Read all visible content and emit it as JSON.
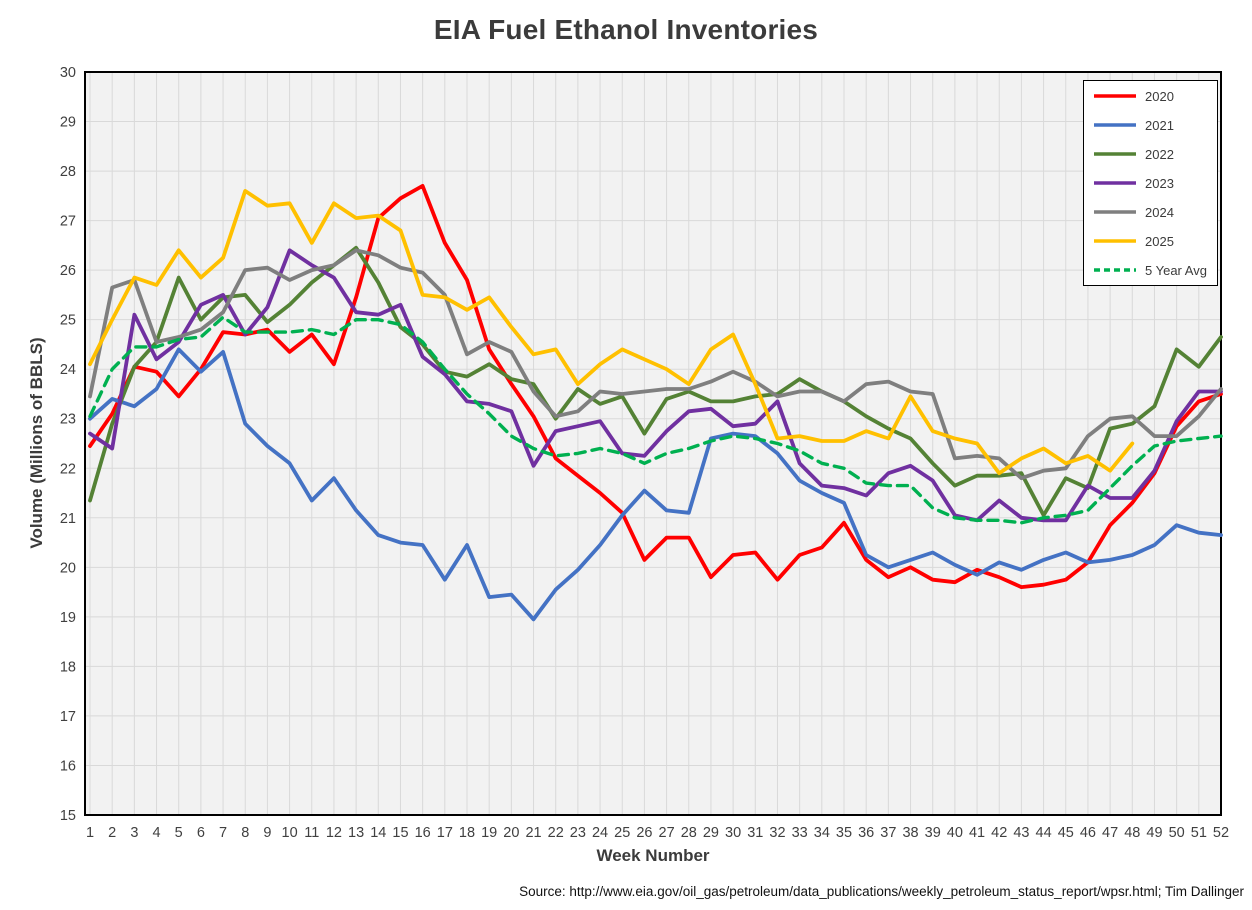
{
  "title": "EIA Fuel Ethanol Inventories",
  "x_axis": {
    "title": "Week Number",
    "ticks": [
      1,
      2,
      3,
      4,
      5,
      6,
      7,
      8,
      9,
      10,
      11,
      12,
      13,
      14,
      15,
      16,
      17,
      18,
      19,
      20,
      21,
      22,
      23,
      24,
      25,
      26,
      27,
      28,
      29,
      30,
      31,
      32,
      33,
      34,
      35,
      36,
      37,
      38,
      39,
      40,
      41,
      42,
      43,
      44,
      45,
      46,
      47,
      48,
      49,
      50,
      51,
      52
    ]
  },
  "y_axis": {
    "title": "Volume (Millions of BBLS)",
    "ticks": [
      15,
      16,
      17,
      18,
      19,
      20,
      21,
      22,
      23,
      24,
      25,
      26,
      27,
      28,
      29,
      30
    ]
  },
  "source": "Source: http://www.eia.gov/oil_gas/petroleum/data_publications/weekly_petroleum_status_report/wpsr.html; Tim Dallinger",
  "colors": {
    "plot_background": "#f2f2f2",
    "gridline": "#d9d9d9",
    "border": "#000000",
    "title_text": "#3b3b3b",
    "tick_text": "#404040"
  },
  "chart_data": {
    "type": "line",
    "title": "EIA Fuel Ethanol Inventories",
    "xlabel": "Week Number",
    "ylabel": "Volume (Millions of BBLS)",
    "xlim": [
      1,
      52
    ],
    "ylim": [
      15,
      30
    ],
    "grid": true,
    "legend_position": "top-right",
    "x": [
      1,
      2,
      3,
      4,
      5,
      6,
      7,
      8,
      9,
      10,
      11,
      12,
      13,
      14,
      15,
      16,
      17,
      18,
      19,
      20,
      21,
      22,
      23,
      24,
      25,
      26,
      27,
      28,
      29,
      30,
      31,
      32,
      33,
      34,
      35,
      36,
      37,
      38,
      39,
      40,
      41,
      42,
      43,
      44,
      45,
      46,
      47,
      48,
      49,
      50,
      51,
      52
    ],
    "series": [
      {
        "name": "2020",
        "color": "#FF0000",
        "style": "solid",
        "values": [
          22.45,
          23.1,
          24.05,
          23.95,
          23.45,
          24.0,
          24.75,
          24.7,
          24.8,
          24.35,
          24.7,
          24.1,
          25.45,
          27.05,
          27.45,
          27.7,
          26.55,
          25.8,
          24.4,
          23.7,
          23.05,
          22.2,
          21.85,
          21.5,
          21.1,
          20.15,
          20.6,
          20.6,
          19.8,
          20.25,
          20.3,
          19.75,
          20.25,
          20.4,
          20.9,
          20.15,
          19.8,
          20.0,
          19.75,
          19.7,
          19.95,
          19.8,
          19.6,
          19.65,
          19.75,
          20.1,
          20.85,
          21.3,
          21.9,
          22.85,
          23.35,
          23.5
        ]
      },
      {
        "name": "2021",
        "color": "#4472C4",
        "style": "solid",
        "values": [
          23.0,
          23.4,
          23.25,
          23.6,
          24.4,
          23.95,
          24.35,
          22.9,
          22.45,
          22.1,
          21.35,
          21.8,
          21.15,
          20.65,
          20.5,
          20.45,
          19.75,
          20.45,
          19.4,
          19.45,
          18.95,
          19.55,
          19.95,
          20.45,
          21.05,
          21.55,
          21.15,
          21.1,
          22.6,
          22.7,
          22.65,
          22.3,
          21.75,
          21.5,
          21.3,
          20.25,
          20.0,
          20.15,
          20.3,
          20.05,
          19.85,
          20.1,
          19.95,
          20.15,
          20.3,
          20.1,
          20.15,
          20.25,
          20.45,
          20.85,
          20.7,
          20.65
        ]
      },
      {
        "name": "2022",
        "color": "#548235",
        "style": "solid",
        "values": [
          21.35,
          22.9,
          24.05,
          24.55,
          25.85,
          25.0,
          25.45,
          25.5,
          24.95,
          25.3,
          25.75,
          26.1,
          26.45,
          25.75,
          24.85,
          24.5,
          23.95,
          23.85,
          24.1,
          23.8,
          23.7,
          23.0,
          23.6,
          23.3,
          23.45,
          22.7,
          23.4,
          23.55,
          23.35,
          23.35,
          23.45,
          23.5,
          23.8,
          23.55,
          23.35,
          23.05,
          22.8,
          22.6,
          22.1,
          21.65,
          21.85,
          21.85,
          21.9,
          21.05,
          21.8,
          21.6,
          22.8,
          22.9,
          23.25,
          24.4,
          24.05,
          24.65
        ]
      },
      {
        "name": "2023",
        "color": "#7030A0",
        "style": "solid",
        "values": [
          22.7,
          22.4,
          25.1,
          24.2,
          24.55,
          25.3,
          25.5,
          24.7,
          25.25,
          26.4,
          26.1,
          25.85,
          25.15,
          25.1,
          25.3,
          24.25,
          23.9,
          23.35,
          23.3,
          23.15,
          22.05,
          22.75,
          22.85,
          22.95,
          22.3,
          22.25,
          22.75,
          23.15,
          23.2,
          22.85,
          22.9,
          23.35,
          22.1,
          21.65,
          21.6,
          21.45,
          21.9,
          22.05,
          21.75,
          21.05,
          20.95,
          21.35,
          21.0,
          20.95,
          20.95,
          21.65,
          21.4,
          21.4,
          21.95,
          22.95,
          23.55,
          23.55
        ]
      },
      {
        "name": "2024",
        "color": "#7F7F7F",
        "style": "solid",
        "values": [
          23.45,
          25.65,
          25.8,
          24.55,
          24.65,
          24.8,
          25.15,
          26.0,
          26.05,
          25.8,
          26.0,
          26.1,
          26.4,
          26.3,
          26.05,
          25.95,
          25.5,
          24.3,
          24.55,
          24.35,
          23.55,
          23.05,
          23.15,
          23.55,
          23.5,
          23.55,
          23.6,
          23.6,
          23.75,
          23.95,
          23.75,
          23.45,
          23.55,
          23.55,
          23.35,
          23.7,
          23.75,
          23.55,
          23.5,
          22.2,
          22.25,
          22.2,
          21.8,
          21.95,
          22.0,
          22.65,
          23.0,
          23.05,
          22.65,
          22.65,
          23.05,
          23.6
        ]
      },
      {
        "name": "2025",
        "color": "#FFC000",
        "style": "solid",
        "values": [
          24.1,
          25.0,
          25.85,
          25.7,
          26.4,
          25.85,
          26.25,
          27.6,
          27.3,
          27.35,
          26.55,
          27.35,
          27.05,
          27.1,
          26.8,
          25.5,
          25.45,
          25.2,
          25.45,
          24.85,
          24.3,
          24.4,
          23.7,
          24.1,
          24.4,
          24.2,
          24.0,
          23.7,
          24.4,
          24.7,
          23.7,
          22.6,
          22.65,
          22.55,
          22.55,
          22.75,
          22.6,
          23.45,
          22.75,
          22.6,
          22.5,
          21.9,
          22.2,
          22.4,
          22.1,
          22.25,
          21.95,
          22.5
        ]
      },
      {
        "name": "5 Year Avg",
        "color": "#00B050",
        "style": "dashed",
        "values": [
          23.05,
          24.0,
          24.45,
          24.45,
          24.6,
          24.65,
          25.05,
          24.75,
          24.75,
          24.75,
          24.8,
          24.7,
          25.0,
          25.0,
          24.9,
          24.55,
          24.0,
          23.5,
          23.1,
          22.65,
          22.4,
          22.25,
          22.3,
          22.4,
          22.3,
          22.1,
          22.3,
          22.4,
          22.55,
          22.65,
          22.6,
          22.5,
          22.35,
          22.1,
          22.0,
          21.7,
          21.65,
          21.65,
          21.2,
          21.0,
          20.95,
          20.95,
          20.9,
          21.0,
          21.05,
          21.15,
          21.6,
          22.05,
          22.45,
          22.55,
          22.6,
          22.65
        ]
      }
    ]
  }
}
